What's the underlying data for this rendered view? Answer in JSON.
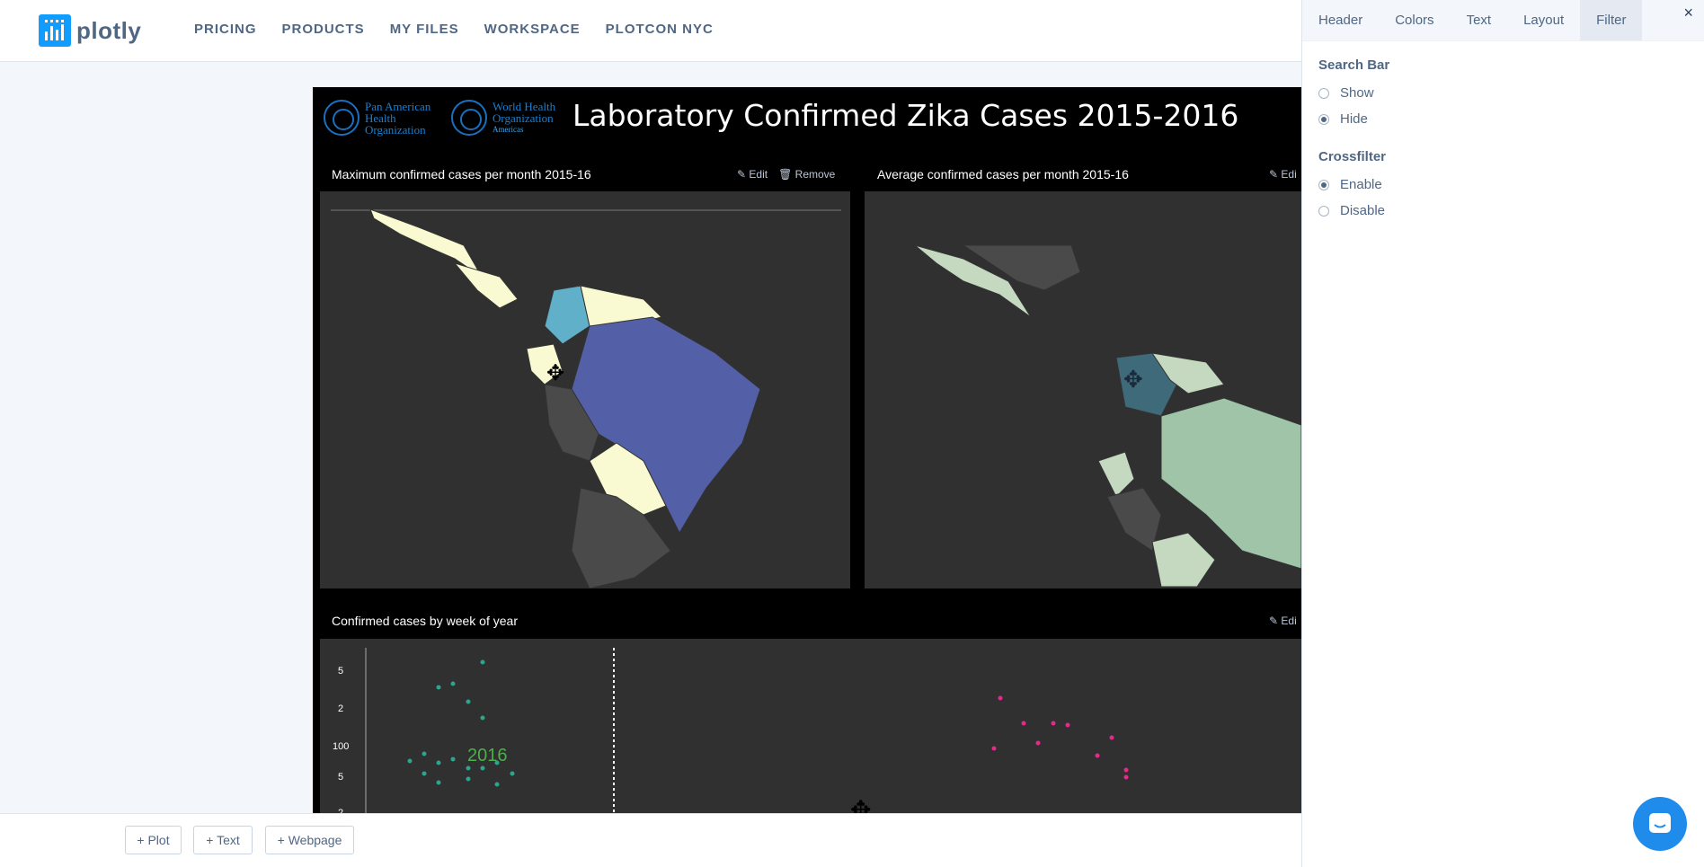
{
  "brand": {
    "name": "plotly"
  },
  "nav": [
    "PRICING",
    "PRODUCTS",
    "MY FILES",
    "WORKSPACE",
    "PLOTCON NYC"
  ],
  "dashboard": {
    "title": "Laboratory Confirmed Zika Cases 2015-2016",
    "logos": {
      "paho": "Pan American Health Organization",
      "who": "World Health Organization",
      "who_sub": "Americas"
    },
    "panels": [
      {
        "title": "Maximum confirmed cases per month 2015-16",
        "edit": "Edit",
        "remove": "Remove"
      },
      {
        "title": "Average confirmed cases per month 2015-16",
        "edit": "Edi"
      },
      {
        "title": "Confirmed cases by week of year",
        "edit": "Edi"
      }
    ],
    "scatter": {
      "year_label": "2016",
      "ticks": [
        "5",
        "2",
        "100",
        "5",
        "2"
      ],
      "green_color": "#2ca58d",
      "pink_color": "#e7298a"
    }
  },
  "bottom_buttons": [
    "+ Plot",
    "+ Text",
    "+ Webpage"
  ],
  "sidebar": {
    "tabs": [
      "Header",
      "Colors",
      "Text",
      "Layout",
      "Filter"
    ],
    "active_tab": "Filter",
    "search_bar": {
      "label": "Search Bar",
      "options": [
        "Show",
        "Hide"
      ],
      "selected": "Hide"
    },
    "crossfilter": {
      "label": "Crossfilter",
      "options": [
        "Enable",
        "Disable"
      ],
      "selected": "Enable"
    },
    "close": "×"
  }
}
